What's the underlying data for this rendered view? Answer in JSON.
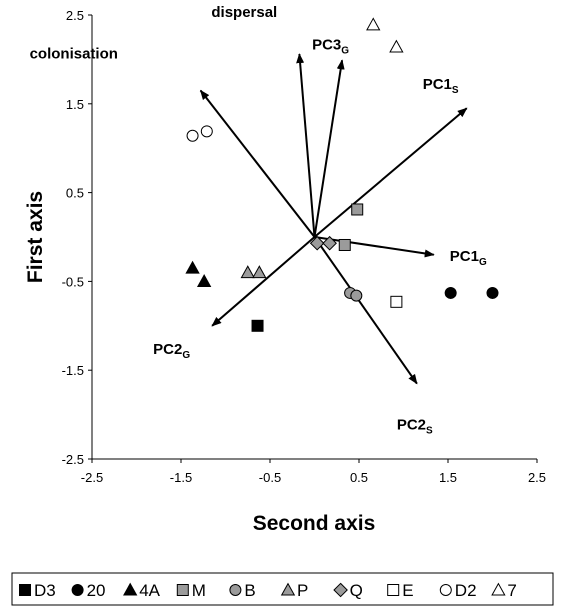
{
  "chart_data": {
    "type": "scatter",
    "xlabel": "Second axis",
    "ylabel": "First axis",
    "xlim": [
      -2.5,
      2.5
    ],
    "ylim": [
      -2.5,
      2.5
    ],
    "x_ticks": [
      "-2.5",
      "-1.5",
      "-0.5",
      "0.5",
      "1.5",
      "2.5"
    ],
    "y_ticks": [
      "2.5",
      "1.5",
      "0.5",
      "-0.5",
      "-1.5",
      "-2.5"
    ],
    "grid": false,
    "legend_position": "bottom",
    "series": [
      {
        "name": "D3",
        "marker": "square",
        "fill": "#000000",
        "points": [
          [
            -0.64,
            -1.0
          ]
        ]
      },
      {
        "name": "20",
        "marker": "circle",
        "fill": "#000000",
        "points": [
          [
            1.53,
            -0.63
          ],
          [
            2.0,
            -0.63
          ]
        ]
      },
      {
        "name": "4A",
        "marker": "triangle",
        "fill": "#000000",
        "points": [
          [
            -1.37,
            -0.35
          ],
          [
            -1.24,
            -0.5
          ]
        ]
      },
      {
        "name": "M",
        "marker": "square",
        "fill": "#9b9b9b",
        "points": [
          [
            0.48,
            0.31
          ],
          [
            0.34,
            -0.09
          ]
        ]
      },
      {
        "name": "B",
        "marker": "circle",
        "fill": "#9b9b9b",
        "points": [
          [
            0.4,
            -0.63
          ],
          [
            0.47,
            -0.66
          ]
        ]
      },
      {
        "name": "P",
        "marker": "triangle",
        "fill": "#9b9b9b",
        "points": [
          [
            -0.75,
            -0.4
          ],
          [
            -0.62,
            -0.4
          ]
        ]
      },
      {
        "name": "Q",
        "marker": "diamond",
        "fill": "#9b9b9b",
        "points": [
          [
            0.03,
            -0.07
          ],
          [
            0.17,
            -0.07
          ]
        ]
      },
      {
        "name": "E",
        "marker": "square",
        "fill": "#ffffff",
        "points": [
          [
            0.92,
            -0.73
          ]
        ]
      },
      {
        "name": "D2",
        "marker": "circle",
        "fill": "#ffffff",
        "points": [
          [
            -1.37,
            1.14
          ],
          [
            -1.21,
            1.19
          ]
        ]
      },
      {
        "name": "7",
        "marker": "triangle",
        "fill": "#ffffff",
        "points": [
          [
            0.66,
            2.39
          ],
          [
            0.92,
            2.14
          ]
        ]
      }
    ],
    "arrows": [
      {
        "label": "dispersal",
        "sub": "",
        "x": -0.17,
        "y": 2.06
      },
      {
        "label": "colonisation",
        "sub": "",
        "x": -1.28,
        "y": 1.65
      },
      {
        "label": "PC3",
        "sub": "G",
        "x": 0.31,
        "y": 1.99
      },
      {
        "label": "PC1",
        "sub": "S",
        "x": 1.71,
        "y": 1.45
      },
      {
        "label": "PC1",
        "sub": "G",
        "x": 1.34,
        "y": -0.2
      },
      {
        "label": "PC2",
        "sub": "G",
        "x": -1.15,
        "y": -1.0
      },
      {
        "label": "PC2",
        "sub": "S",
        "x": 1.15,
        "y": -1.65
      }
    ]
  }
}
